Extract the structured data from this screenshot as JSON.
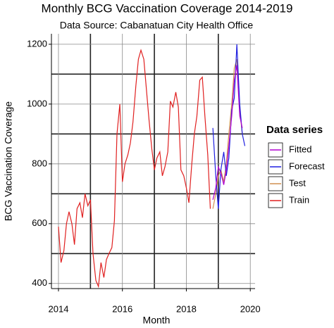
{
  "chart_data": {
    "type": "line",
    "title": "Monthly BCG Vaccination Coverage 2014-2019",
    "subtitle": "Data Source: Cabanatuan City Health Office",
    "x_label": "Month",
    "y_label": "BCG Vaccination Coverage",
    "legend_title": "Data series",
    "legend_position": "right",
    "xlim": [
      2013.78,
      2020.15
    ],
    "ylim": [
      383,
      1235
    ],
    "xticks": [
      2014,
      2016,
      2018,
      2020
    ],
    "yticks": [
      400,
      600,
      800,
      1000,
      1200
    ],
    "xminor": [
      2015,
      2017,
      2019
    ],
    "yminor": [
      500,
      700,
      900,
      1100
    ],
    "grid": true,
    "series": [
      {
        "name": "Fitted",
        "color": "#b000d0",
        "x": [
          2018.83,
          2018.92,
          2019.0,
          2019.08,
          2019.17,
          2019.25,
          2019.33,
          2019.42,
          2019.5,
          2019.58,
          2019.67,
          2019.75
        ],
        "values": [
          680,
          720,
          790,
          770,
          730,
          780,
          860,
          960,
          1080,
          1130,
          960,
          920
        ]
      },
      {
        "name": "Forecast",
        "color": "#2020e0",
        "x": [
          2018.83,
          2018.92,
          2019.0,
          2019.08,
          2019.17,
          2019.25,
          2019.33,
          2019.42,
          2019.5,
          2019.58,
          2019.67,
          2019.75,
          2019.83
        ],
        "values": [
          920,
          760,
          650,
          780,
          840,
          760,
          820,
          980,
          1020,
          1200,
          1000,
          900,
          860
        ]
      },
      {
        "name": "Test",
        "color": "#d09050",
        "x": [
          2018.83,
          2018.92,
          2019.0,
          2019.08,
          2019.17,
          2019.25,
          2019.33,
          2019.42,
          2019.5,
          2019.58,
          2019.67,
          2019.75
        ],
        "values": [
          650,
          700,
          760,
          780,
          740,
          800,
          900,
          1000,
          1120,
          1150,
          980,
          900
        ]
      },
      {
        "name": "Train",
        "color": "#e02020",
        "x": [
          2014.0,
          2014.08,
          2014.17,
          2014.25,
          2014.33,
          2014.42,
          2014.5,
          2014.58,
          2014.67,
          2014.75,
          2014.83,
          2014.92,
          2015.0,
          2015.08,
          2015.17,
          2015.25,
          2015.33,
          2015.42,
          2015.5,
          2015.58,
          2015.67,
          2015.75,
          2015.83,
          2015.92,
          2016.0,
          2016.08,
          2016.17,
          2016.25,
          2016.33,
          2016.42,
          2016.5,
          2016.58,
          2016.67,
          2016.75,
          2016.83,
          2016.92,
          2017.0,
          2017.08,
          2017.17,
          2017.25,
          2017.33,
          2017.42,
          2017.5,
          2017.58,
          2017.67,
          2017.75,
          2017.83,
          2017.92,
          2018.0,
          2018.08,
          2018.17,
          2018.25,
          2018.33,
          2018.42,
          2018.5,
          2018.58,
          2018.67,
          2018.75
        ],
        "values": [
          590,
          470,
          510,
          600,
          640,
          600,
          530,
          650,
          670,
          620,
          700,
          660,
          680,
          500,
          410,
          390,
          470,
          420,
          480,
          500,
          520,
          610,
          900,
          1000,
          740,
          800,
          830,
          870,
          940,
          1060,
          1150,
          1180,
          1150,
          1050,
          950,
          850,
          780,
          820,
          840,
          760,
          790,
          840,
          1010,
          990,
          1040,
          990,
          780,
          760,
          720,
          670,
          800,
          900,
          960,
          1080,
          1090,
          960,
          830,
          650
        ]
      }
    ]
  }
}
